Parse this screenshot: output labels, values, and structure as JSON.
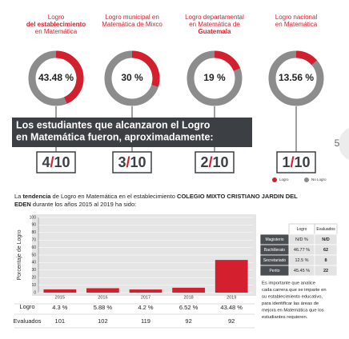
{
  "donuts": [
    {
      "title": [
        "Logro",
        "del establecimiento",
        "en Matemática"
      ],
      "value": 43.48,
      "value_label": "43.48 %",
      "fraction": {
        "numerator": 4,
        "denominator": 10
      }
    },
    {
      "title": [
        "Logro municipal en",
        "Matemática de Mixco"
      ],
      "value": 30,
      "value_label": "30 %",
      "fraction": {
        "numerator": 3,
        "denominator": 10
      }
    },
    {
      "title": [
        "Logro departamental",
        "en Matemática de",
        "Guatemala"
      ],
      "value": 19,
      "value_label": "19 %",
      "fraction": {
        "numerator": 2,
        "denominator": 10
      }
    },
    {
      "title": [
        "Logro nacional",
        "en Matemática"
      ],
      "value": 13.56,
      "value_label": "13.56 %",
      "fraction": {
        "numerator": 1,
        "denominator": 10
      }
    }
  ],
  "banner": [
    "Los estudiantes que alcanzaron el Logro",
    "en Matemática fueron, aproximadamente:"
  ],
  "page_number": "5",
  "legend": [
    "Logro",
    "No Logro"
  ],
  "paragraph": [
    {
      "text": "La "
    },
    {
      "text": "tendencia",
      "bold": true
    },
    {
      "text": " de Logro en Matemática en el establecimiento "
    },
    {
      "text": "COLEGIO MIXTO CRISTIANO JARDIN DEL",
      "bold": true
    },
    {
      "text": "EDEN",
      "bold": true,
      "newline": true
    },
    {
      "text": " durante los años 2015 al 2019 ha sido:"
    }
  ],
  "chart_data": {
    "type": "bar",
    "ylabel": "Porcentaje de Logro",
    "categories": [
      "2015",
      "2016",
      "2017",
      "2018",
      "2019"
    ],
    "values": [
      4.3,
      5.88,
      4.2,
      6.52,
      43.48
    ],
    "value_labels": [
      "4.3 %",
      "5.88 %",
      "4.2 %",
      "6.52 %",
      "43.48 %"
    ],
    "color": "#d4202e",
    "ylim": [
      0,
      100
    ],
    "yticks": [
      0,
      10,
      20,
      30,
      40,
      50,
      60,
      70,
      80,
      90,
      100
    ],
    "grid": true,
    "row_labels": [
      "Logro",
      "Evaluados"
    ],
    "evaluados": [
      101,
      102,
      119,
      92,
      92
    ]
  },
  "table": {
    "header": [
      "Logro",
      "Evaluados"
    ],
    "rows": [
      [
        "Magisterio",
        "N/D %",
        "N/D"
      ],
      [
        "Bachillerato",
        "46.77 %",
        "62"
      ],
      [
        "Secretariado",
        "12.5 %",
        "8"
      ],
      [
        "Perito",
        "45.45 %",
        "22"
      ]
    ]
  },
  "note": [
    "Es importante que analice",
    "cada carrera que se imparte en",
    "su establecimiento educativo,",
    "para identificar las áreas de",
    "mejora en Matemática que los",
    "estudiantes requieren."
  ]
}
